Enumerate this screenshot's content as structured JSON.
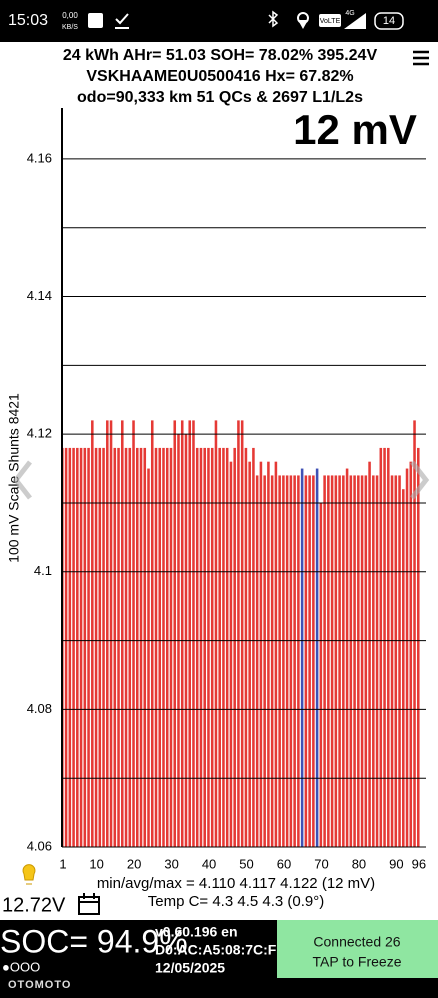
{
  "status_bar": {
    "time": "15:03",
    "speed": "0,00",
    "speed_unit": "KB/S",
    "volte": "VoLTE",
    "network": "4G",
    "battery": "14"
  },
  "header": {
    "line1": "24 kWh  AHr= 51.03 SOH= 78.02% 395.24V",
    "line2": "VSKHAAME0U0500416  Hx= 67.82%",
    "line3": "odo=90,333 km 51 QCs & 2697 L1/L2s"
  },
  "chart_data": {
    "type": "bar",
    "big_label": "12 mV",
    "y_label": "100 mV Scale Shunts 8421",
    "x": [
      1,
      2,
      3,
      4,
      5,
      6,
      7,
      8,
      9,
      10,
      11,
      12,
      13,
      14,
      15,
      16,
      17,
      18,
      19,
      20,
      21,
      22,
      23,
      24,
      25,
      26,
      27,
      28,
      29,
      30,
      31,
      32,
      33,
      34,
      35,
      36,
      37,
      38,
      39,
      40,
      41,
      42,
      43,
      44,
      45,
      46,
      47,
      48,
      49,
      50,
      51,
      52,
      53,
      54,
      55,
      56,
      57,
      58,
      59,
      60,
      61,
      62,
      63,
      64,
      65,
      66,
      67,
      68,
      69,
      70,
      71,
      72,
      73,
      74,
      75,
      76,
      77,
      78,
      79,
      80,
      81,
      82,
      83,
      84,
      85,
      86,
      87,
      88,
      89,
      90,
      91,
      92,
      93,
      94,
      95,
      96
    ],
    "values": [
      4.118,
      4.118,
      4.118,
      4.118,
      4.118,
      4.118,
      4.118,
      4.118,
      4.122,
      4.118,
      4.118,
      4.118,
      4.122,
      4.122,
      4.118,
      4.118,
      4.122,
      4.118,
      4.118,
      4.122,
      4.118,
      4.118,
      4.118,
      4.115,
      4.122,
      4.118,
      4.118,
      4.118,
      4.118,
      4.118,
      4.122,
      4.12,
      4.122,
      4.12,
      4.122,
      4.122,
      4.118,
      4.118,
      4.118,
      4.118,
      4.118,
      4.122,
      4.118,
      4.118,
      4.118,
      4.116,
      4.118,
      4.122,
      4.122,
      4.118,
      4.116,
      4.118,
      4.114,
      4.116,
      4.114,
      4.116,
      4.114,
      4.116,
      4.114,
      4.114,
      4.114,
      4.114,
      4.114,
      4.114,
      4.115,
      4.114,
      4.114,
      4.114,
      4.115,
      4.11,
      4.114,
      4.114,
      4.114,
      4.114,
      4.114,
      4.114,
      4.115,
      4.114,
      4.114,
      4.114,
      4.114,
      4.114,
      4.116,
      4.114,
      4.114,
      4.118,
      4.118,
      4.118,
      4.114,
      4.114,
      4.114,
      4.112,
      4.115,
      4.116,
      4.122,
      4.118
    ],
    "color": "#e53935",
    "highlight_color": "#3f51b5",
    "highlight_x": [
      65,
      69
    ],
    "xlim": [
      0.75,
      97.9
    ],
    "xticks": [
      1,
      10,
      20,
      30,
      40,
      50,
      60,
      70,
      80,
      90,
      96
    ],
    "ylim": [
      4.06,
      4.1674
    ],
    "yticks": [
      4.06,
      4.08,
      4.1,
      4.12,
      4.14,
      4.16
    ],
    "yminor": [
      4.07,
      4.09,
      4.11,
      4.13,
      4.15
    ],
    "grid": true
  },
  "footer": {
    "stats": "min/avg/max = 4.110 4.117 4.122  (12 mV)",
    "voltage": "12.72V",
    "temp": "Temp C= 4.3  4.5  4.3  (0.9°)"
  },
  "bottom_bar": {
    "soc": "SOC= 94.9%",
    "version": "v0.60.196 en",
    "mac": "D0:AC:A5:08:7C:F",
    "date": "12/05/2025",
    "button_line1": "Connected 26",
    "button_line2": "TAP to Freeze",
    "dots": "●OOO",
    "watermark": "OTOMOTO"
  }
}
